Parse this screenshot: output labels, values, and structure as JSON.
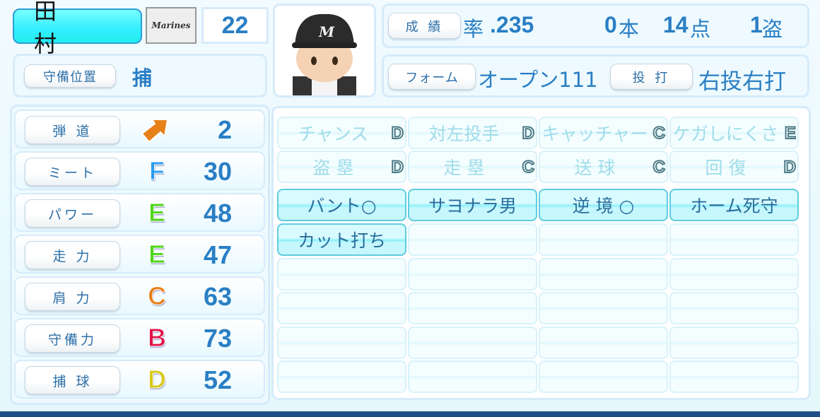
{
  "player": {
    "name": "田 村",
    "team_logo": "Marines",
    "number": "22",
    "position_label": "守備位置",
    "position": "捕"
  },
  "record": {
    "label": "成 績",
    "avg_prefix": "率",
    "avg": ".235",
    "hr": "0",
    "hr_unit": "本",
    "rbi": "14",
    "rbi_unit": "点",
    "sb": "1",
    "sb_unit": "盗"
  },
  "form": {
    "label": "フォーム",
    "value": "オープン111",
    "throwbat_label": "投 打",
    "throwbat": "右投右打"
  },
  "stats": [
    {
      "label": "弾 道",
      "grade": "",
      "icon": "trajectory-arrow-icon",
      "value": "2",
      "color": "#e8801a"
    },
    {
      "label": "ミート",
      "grade": "F",
      "value": "30",
      "color": "#2a9cf0"
    },
    {
      "label": "パワー",
      "grade": "E",
      "value": "48",
      "color": "#4ed61a"
    },
    {
      "label": "走 力",
      "grade": "E",
      "value": "47",
      "color": "#4ed61a"
    },
    {
      "label": "肩 力",
      "grade": "C",
      "value": "63",
      "color": "#e8801a"
    },
    {
      "label": "守備力",
      "grade": "B",
      "value": "73",
      "color": "#e0154a"
    },
    {
      "label": "捕 球",
      "grade": "D",
      "value": "52",
      "color": "#d6c81a"
    }
  ],
  "abilities_graded": [
    {
      "name": "チャンス",
      "grade": "D"
    },
    {
      "name": "対左投手",
      "grade": "D"
    },
    {
      "name": "キャッチャー",
      "grade": "C"
    },
    {
      "name": "ケガしにくさ",
      "grade": "E"
    },
    {
      "name": "盗 塁",
      "grade": "D"
    },
    {
      "name": "走 塁",
      "grade": "C"
    },
    {
      "name": "送 球",
      "grade": "C"
    },
    {
      "name": "回 復",
      "grade": "D"
    }
  ],
  "abilities_special": [
    "バント○",
    "サヨナラ男",
    "逆 境 ○",
    "ホーム死守",
    "カット打ち"
  ]
}
